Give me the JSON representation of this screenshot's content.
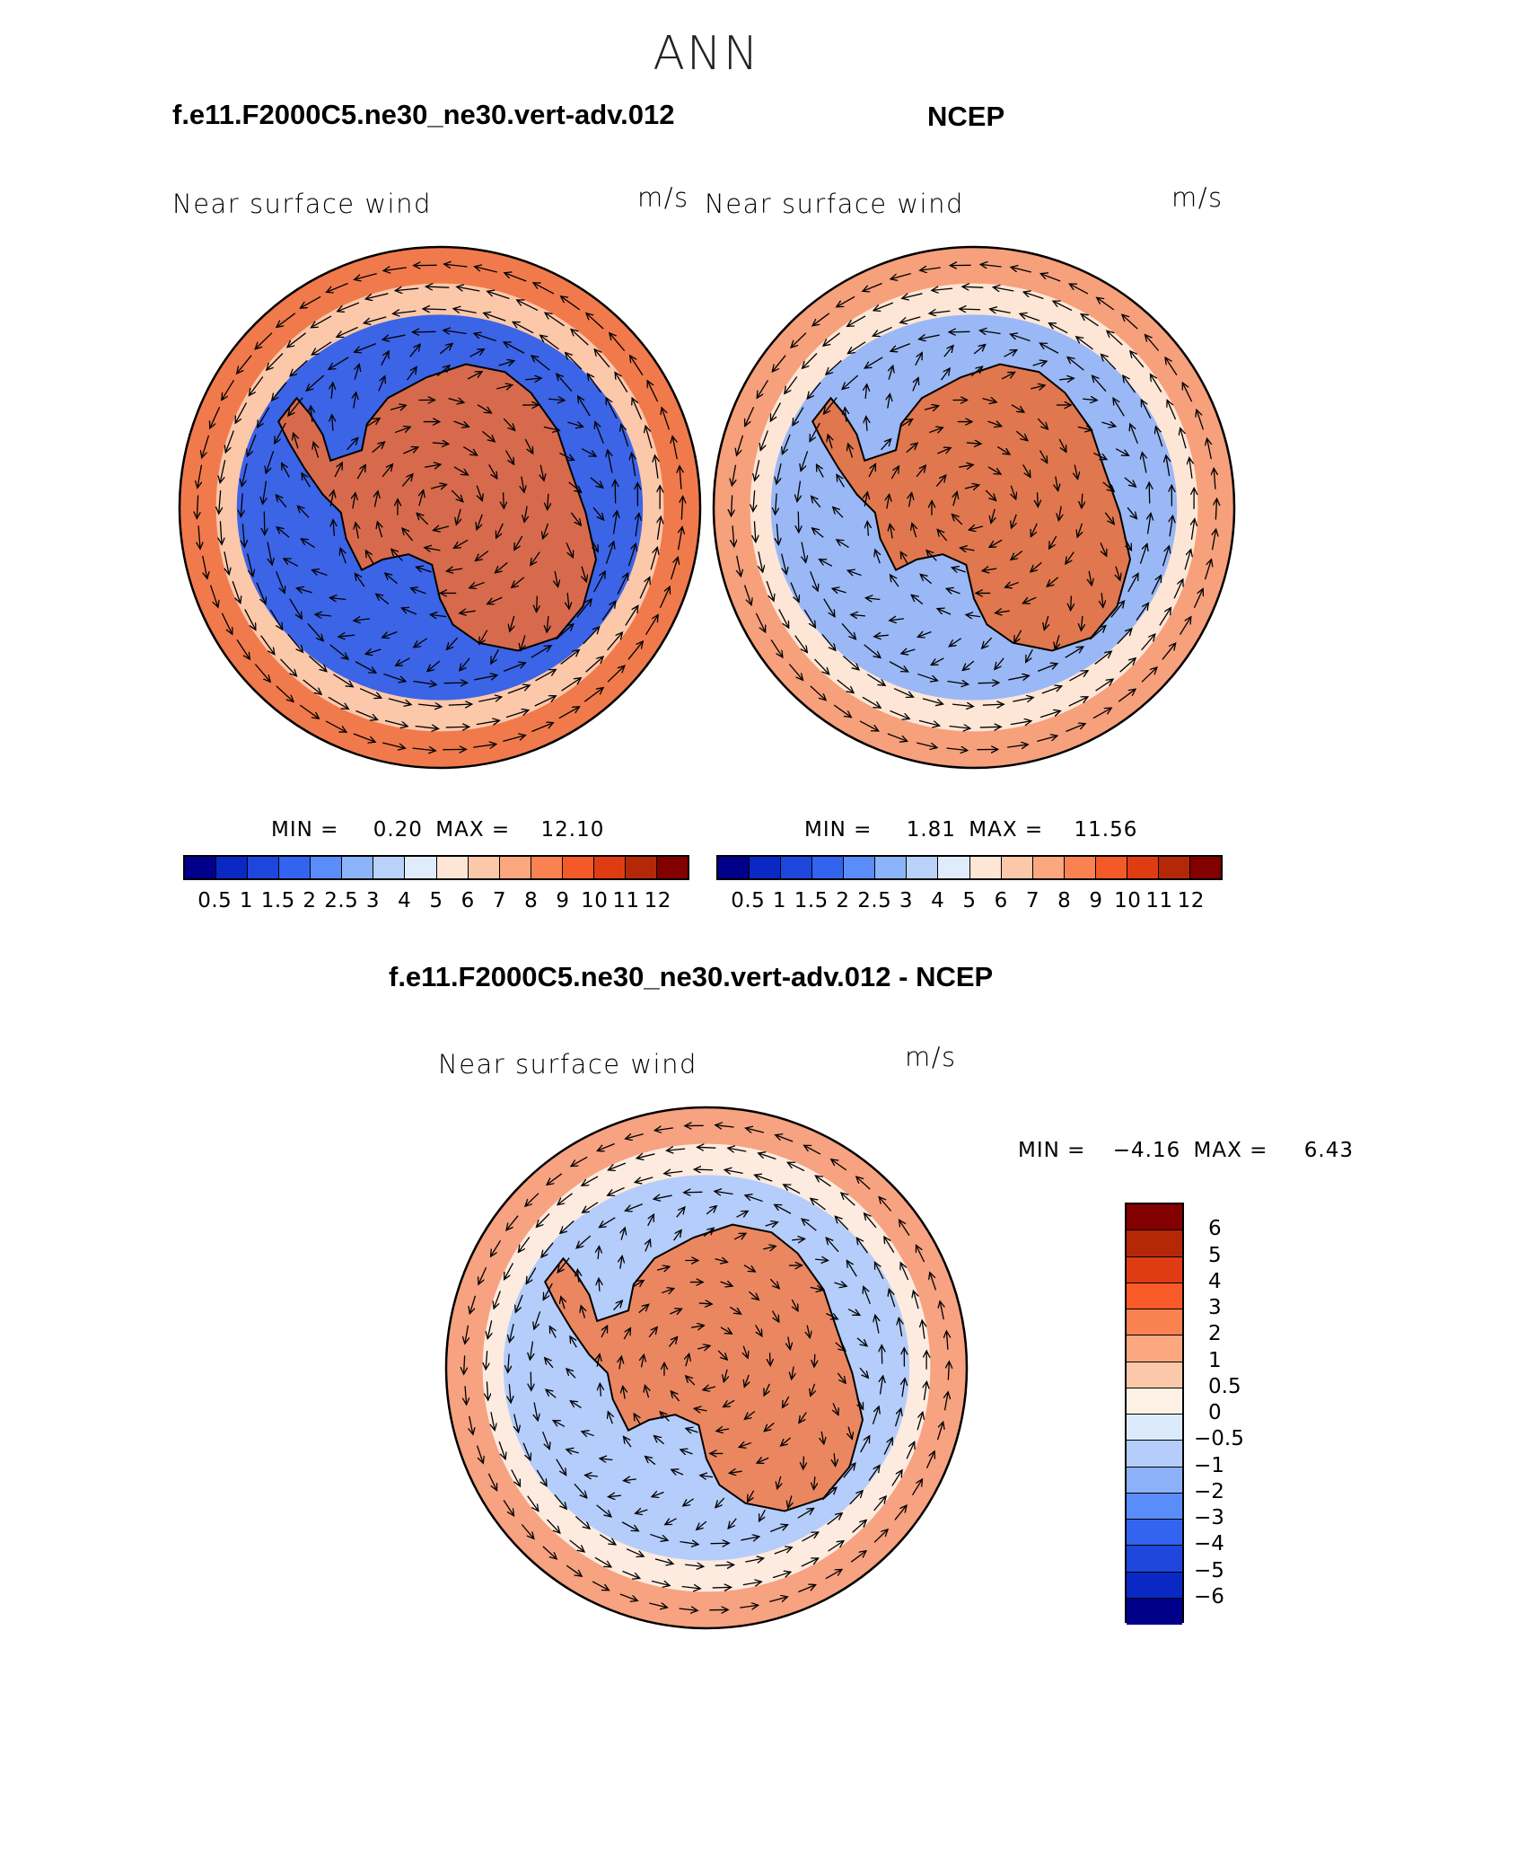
{
  "title": "ANN",
  "panels": {
    "model": {
      "header": "f.e11.F2000C5.ne30_ne30.vert-adv.012",
      "field": "Near surface wind",
      "units": "m/s",
      "stats": {
        "min_label": "MIN =",
        "min": "0.20",
        "max_label": "MAX =",
        "max": "12.10"
      }
    },
    "obs": {
      "header": "NCEP",
      "field": "Near surface wind",
      "units": "m/s",
      "stats": {
        "min_label": "MIN =",
        "min": "1.81",
        "max_label": "MAX =",
        "max": "11.56"
      }
    },
    "diff": {
      "header": "f.e11.F2000C5.ne30_ne30.vert-adv.012 - NCEP",
      "field": "Near surface wind",
      "units": "m/s",
      "stats": {
        "min_label": "MIN =",
        "min": "−4.16",
        "max_label": "MAX =",
        "max": "6.43"
      }
    }
  },
  "colorbars": {
    "abs": {
      "colors": [
        "#00008b",
        "#0a28c4",
        "#1e46dc",
        "#3264f0",
        "#5a8cfa",
        "#8cb4fa",
        "#b9d2fa",
        "#e0ecfc",
        "#fde6d6",
        "#fcc8aa",
        "#fba780",
        "#fa8250",
        "#f45a28",
        "#e03c14",
        "#b42808",
        "#820000"
      ],
      "labels": [
        "0.5",
        "1",
        "1.5",
        "2",
        "2.5",
        "3",
        "4",
        "5",
        "6",
        "7",
        "8",
        "9",
        "10",
        "11",
        "12"
      ]
    },
    "diff": {
      "colors": [
        "#820000",
        "#b42808",
        "#e03c14",
        "#fa5a28",
        "#fa8250",
        "#fba780",
        "#fcc8aa",
        "#fdf0e4",
        "#dcebfc",
        "#b4cdfa",
        "#8cb0fa",
        "#5a8cfa",
        "#3264f0",
        "#1e46dc",
        "#0a28c4",
        "#00008b"
      ],
      "labels": [
        "6",
        "5",
        "4",
        "3",
        "2",
        "1",
        "0.5",
        "0",
        "−0.5",
        "−1",
        "−2",
        "−3",
        "−4",
        "−5",
        "−6"
      ]
    }
  },
  "map_style": {
    "model": {
      "outer": "#f07a4c",
      "ring": "#3c64e6",
      "inner": "#e86a3c",
      "mid": "#fcc8aa"
    },
    "obs": {
      "outer": "#f6a07c",
      "ring": "#9ab8f6",
      "inner": "#e8703c",
      "mid": "#fde6d6"
    },
    "diff": {
      "outer": "#f7a280",
      "ring": "#b4cdfa",
      "inner": "#f08050",
      "mid": "#fdebe0"
    }
  }
}
